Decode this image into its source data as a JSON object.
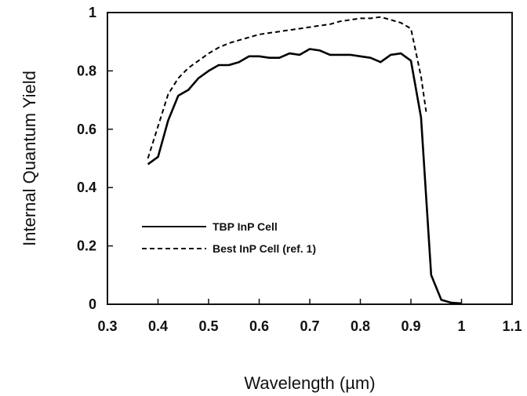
{
  "chart_data": {
    "type": "line",
    "xlabel": "Wavelength (µm)",
    "ylabel": "Internal Quantum Yield",
    "xlim": [
      0.3,
      1.1
    ],
    "ylim": [
      0,
      1
    ],
    "x_ticks": [
      "0.3",
      "0.4",
      "0.5",
      "0.6",
      "0.7",
      "0.8",
      "0.9",
      "1",
      "1.1"
    ],
    "y_ticks": [
      "0",
      "0.2",
      "0.4",
      "0.6",
      "0.8",
      "1"
    ],
    "grid": false,
    "legend_position": "center-left",
    "series": [
      {
        "name": "TBP InP Cell",
        "style": "solid",
        "color": "#000000",
        "x": [
          0.38,
          0.4,
          0.42,
          0.44,
          0.46,
          0.48,
          0.5,
          0.52,
          0.54,
          0.56,
          0.58,
          0.6,
          0.62,
          0.64,
          0.66,
          0.68,
          0.7,
          0.72,
          0.74,
          0.76,
          0.78,
          0.8,
          0.82,
          0.84,
          0.86,
          0.88,
          0.9,
          0.92,
          0.94,
          0.96,
          0.98,
          1.0
        ],
        "y": [
          0.48,
          0.505,
          0.63,
          0.715,
          0.735,
          0.775,
          0.8,
          0.82,
          0.82,
          0.83,
          0.85,
          0.85,
          0.845,
          0.845,
          0.86,
          0.855,
          0.875,
          0.87,
          0.855,
          0.855,
          0.855,
          0.85,
          0.845,
          0.83,
          0.855,
          0.86,
          0.835,
          0.64,
          0.1,
          0.015,
          0.005,
          0.003
        ]
      },
      {
        "name": "Best InP Cell (ref. 1)",
        "style": "dashed",
        "color": "#000000",
        "x": [
          0.38,
          0.4,
          0.42,
          0.44,
          0.46,
          0.48,
          0.5,
          0.52,
          0.54,
          0.56,
          0.58,
          0.6,
          0.62,
          0.64,
          0.66,
          0.68,
          0.7,
          0.72,
          0.74,
          0.76,
          0.78,
          0.8,
          0.82,
          0.84,
          0.86,
          0.88,
          0.9,
          0.92,
          0.93
        ],
        "y": [
          0.5,
          0.61,
          0.72,
          0.775,
          0.81,
          0.835,
          0.86,
          0.88,
          0.895,
          0.905,
          0.915,
          0.925,
          0.93,
          0.935,
          0.94,
          0.945,
          0.95,
          0.955,
          0.96,
          0.97,
          0.975,
          0.98,
          0.98,
          0.985,
          0.975,
          0.965,
          0.945,
          0.78,
          0.66
        ]
      }
    ]
  }
}
